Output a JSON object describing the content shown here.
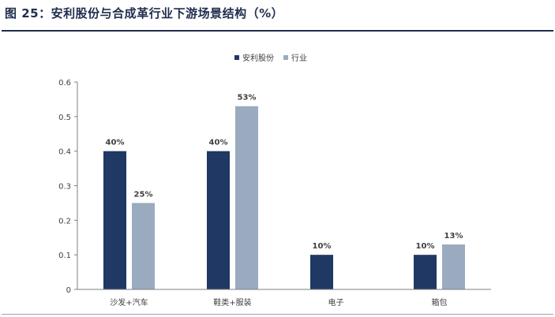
{
  "figure": {
    "title": "图 25：安利股份与合成革行业下游场景结构（%）"
  },
  "colors": {
    "title": "#1f2d4d",
    "series_primary": "#1f3864",
    "series_secondary": "#9aabbf",
    "axis": "#7f7f7f",
    "text": "#404040"
  },
  "chart_data": {
    "type": "bar",
    "title": "",
    "xlabel": "",
    "ylabel": "",
    "categories": [
      "沙发+汽车",
      "鞋类+服装",
      "电子",
      "箱包"
    ],
    "ylim": [
      0,
      0.6
    ],
    "yticks": [
      "0",
      "0.1",
      "0.2",
      "0.3",
      "0.4",
      "0.5",
      "0.6"
    ],
    "grid": false,
    "legend_position": "top-center",
    "series": [
      {
        "name": "安利股份",
        "values": [
          0.4,
          0.4,
          0.1,
          0.1
        ],
        "labels": [
          "40%",
          "40%",
          "10%",
          "10%"
        ]
      },
      {
        "name": "行业",
        "values": [
          0.25,
          0.53,
          null,
          0.13
        ],
        "labels": [
          "25%",
          "53%",
          "",
          "13%"
        ]
      }
    ]
  }
}
